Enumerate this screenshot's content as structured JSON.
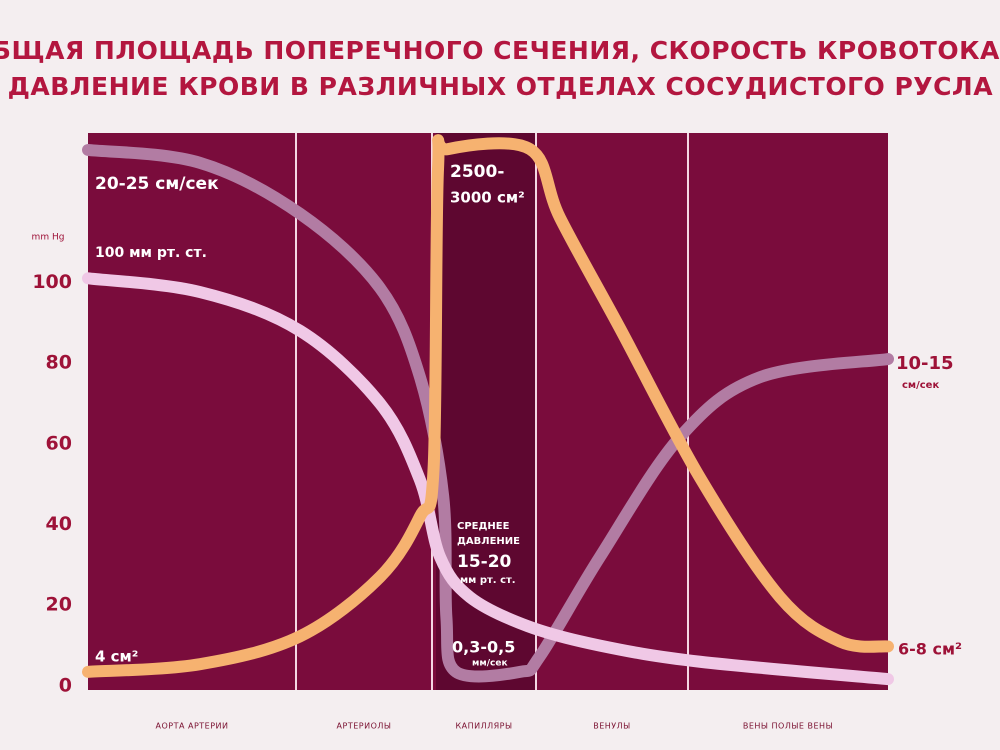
{
  "chart_data": {
    "type": "line",
    "title": [
      "ОБЩАЯ ПЛОЩАДЬ ПОПЕРЕЧНОГО СЕЧЕНИЯ, СКОРОСТЬ КРОВОТОКА",
      "И ДАВЛЕНИЕ КРОВИ В РАЗЛИЧНЫХ ОТДЕЛАХ СОСУДИСТОГО РУСЛА"
    ],
    "ylabel": "mm Hg",
    "ylim": [
      -1,
      137
    ],
    "yticks": [
      0,
      20,
      40,
      60,
      80,
      100
    ],
    "xlim": [
      0,
      100
    ],
    "dividers": [
      26,
      43,
      56,
      75
    ],
    "categories": [
      "АОРТА   АРТЕРИИ",
      "АРТЕРИОЛЫ",
      "КАПИЛЛЯРЫ",
      "ВЕНУЛЫ",
      "ВЕНЫ   ПОЛЫЕ ВЕНЫ"
    ],
    "series": [
      {
        "color": "#b27ca3",
        "x": [
          0,
          14,
          26.5,
          36.5,
          41.5,
          44.4,
          44.8,
          46,
          54,
          56.5,
          64,
          74,
          84,
          100
        ],
        "values": [
          132.8,
          129.6,
          117,
          98.6,
          76.5,
          47,
          17,
          3.5,
          3.5,
          7.4,
          32,
          61.7,
          76.5,
          81
        ]
      },
      {
        "color": "#f0c8e6",
        "x": [
          0,
          14,
          26.5,
          36.5,
          41.5,
          44,
          47.75,
          55,
          64,
          76.5,
          100
        ],
        "values": [
          101,
          97.6,
          88,
          70,
          51,
          32,
          22,
          14.8,
          10,
          6,
          1.7
        ]
      },
      {
        "color": "#f6b270",
        "x": [
          0,
          14,
          26.5,
          36.5,
          41.5,
          43.2,
          43.75,
          45,
          55.25,
          59,
          66.5,
          76.5,
          86.5,
          94,
          100
        ],
        "values": [
          3.5,
          5.4,
          12.3,
          27,
          42,
          54,
          128,
          133,
          133,
          116,
          88.6,
          51.6,
          22,
          11,
          9.8
        ]
      }
    ],
    "annotations": [
      "20-25 см/сек",
      "100 мм рт. ст.",
      "2500-",
      "3000 см²",
      "СРЕДНЕЕ",
      "ДАВЛЕНИЕ",
      "15-20",
      "мм рт. ст.",
      "0,3-0,5",
      "мм/сек",
      "4 см²",
      "10-15",
      "см/сек",
      "6-8 см²"
    ]
  }
}
